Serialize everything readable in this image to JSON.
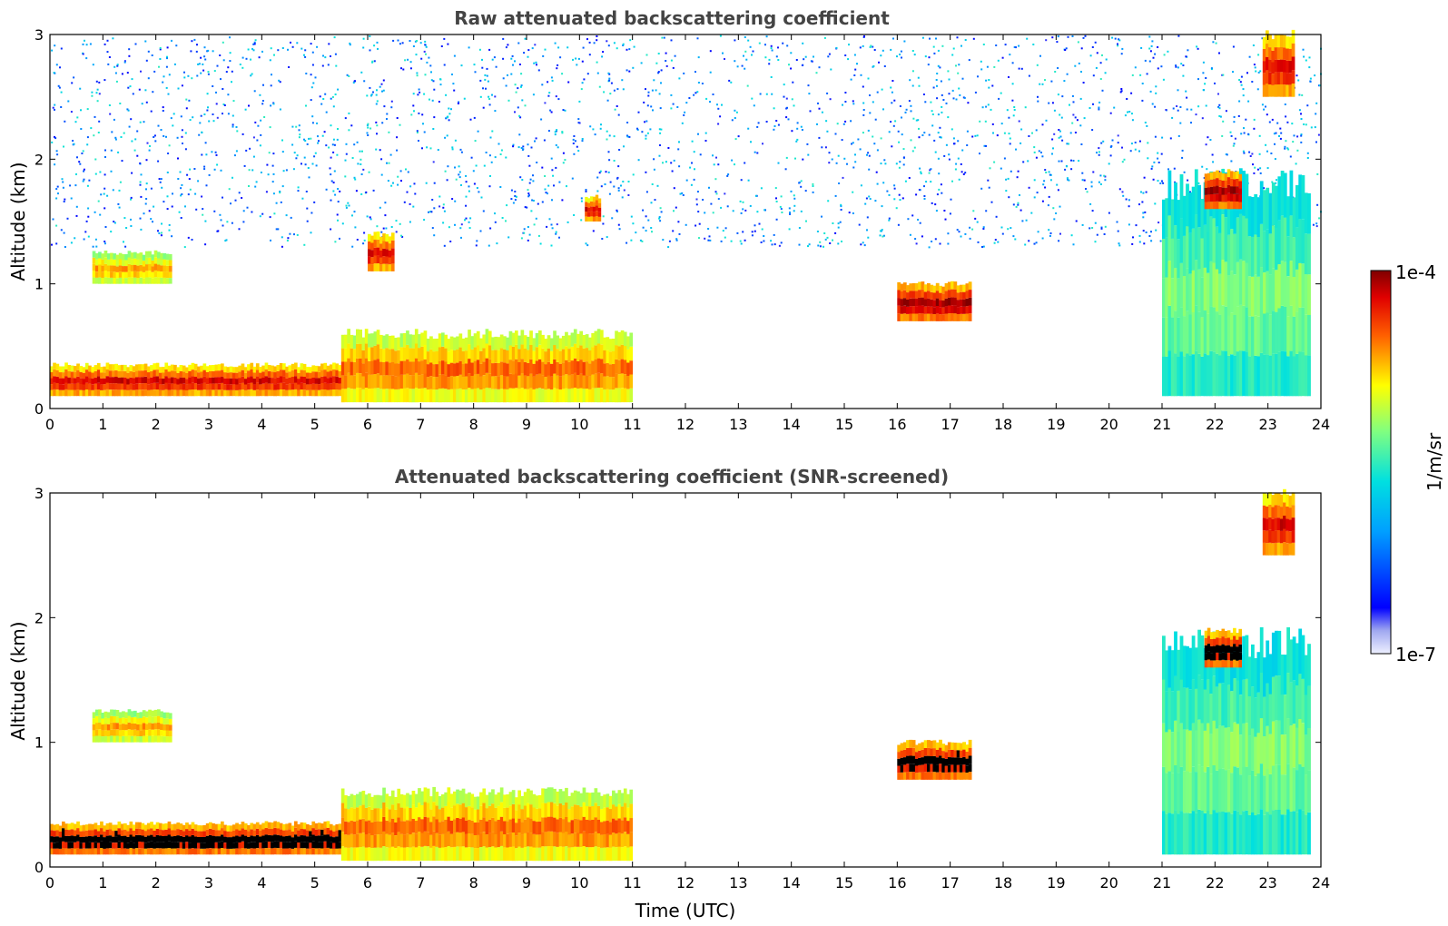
{
  "chart_data": [
    {
      "type": "heatmap",
      "title": "Raw attenuated backscattering coefficient",
      "xlabel": "",
      "ylabel": "Altitude (km)",
      "xlim": [
        0,
        24
      ],
      "ylim": [
        0,
        3
      ],
      "xticks": [
        "0",
        "1",
        "2",
        "3",
        "4",
        "5",
        "6",
        "7",
        "8",
        "9",
        "10",
        "11",
        "12",
        "13",
        "14",
        "15",
        "16",
        "17",
        "18",
        "19",
        "20",
        "21",
        "22",
        "23",
        "24"
      ],
      "yticks": [
        "0",
        "1",
        "2",
        "3"
      ],
      "colorbar": {
        "label": "1/m/sr",
        "min_label": "1e-7",
        "max_label": "1e-4",
        "scale": "log",
        "colormap": "jet"
      },
      "features": [
        {
          "feature": "boundary layer aerosol (high)",
          "x": [
            0,
            5.5
          ],
          "y": [
            0.1,
            0.35
          ],
          "level": 0.95
        },
        {
          "feature": "elevated aerosol layer",
          "x": [
            0.8,
            2.3
          ],
          "y": [
            1.0,
            1.25
          ],
          "level": 0.8
        },
        {
          "feature": "residual layer",
          "x": [
            5.5,
            11
          ],
          "y": [
            0.05,
            0.6
          ],
          "level": 0.85
        },
        {
          "feature": "cloud",
          "x": [
            6.0,
            6.5
          ],
          "y": [
            1.1,
            1.4
          ],
          "level": 0.95
        },
        {
          "feature": "cloud",
          "x": [
            10.1,
            10.4
          ],
          "y": [
            1.5,
            1.7
          ],
          "level": 0.95
        },
        {
          "feature": "cloud",
          "x": [
            16.0,
            17.4
          ],
          "y": [
            0.7,
            1.0
          ],
          "level": 1.0
        },
        {
          "feature": "convective plumes",
          "x": [
            21,
            23.8
          ],
          "y": [
            0.1,
            1.8
          ],
          "level": 0.6
        },
        {
          "feature": "cloud",
          "x": [
            21.8,
            22.5
          ],
          "y": [
            1.6,
            1.9
          ],
          "level": 1.0
        },
        {
          "feature": "cloud",
          "x": [
            22.9,
            23.5
          ],
          "y": [
            2.5,
            3.0
          ],
          "level": 0.95
        },
        {
          "feature": "background noise",
          "x": [
            0,
            24
          ],
          "y": [
            1.3,
            3.0
          ],
          "level": 0.25
        }
      ]
    },
    {
      "type": "heatmap",
      "title": "Attenuated backscattering coefficient (SNR-screened)",
      "xlabel": "Time (UTC)",
      "ylabel": "Altitude (km)",
      "xlim": [
        0,
        24
      ],
      "ylim": [
        0,
        3
      ],
      "xticks": [
        "0",
        "1",
        "2",
        "3",
        "4",
        "5",
        "6",
        "7",
        "8",
        "9",
        "10",
        "11",
        "12",
        "13",
        "14",
        "15",
        "16",
        "17",
        "18",
        "19",
        "20",
        "21",
        "22",
        "23",
        "24"
      ],
      "yticks": [
        "0",
        "1",
        "2",
        "3"
      ],
      "colorbar": {
        "label": "1/m/sr",
        "min_label": "1e-7",
        "max_label": "1e-4",
        "scale": "log",
        "colormap": "jet"
      },
      "features": [
        {
          "feature": "boundary layer aerosol (saturated)",
          "x": [
            0,
            5.5
          ],
          "y": [
            0.1,
            0.35
          ],
          "level": 1.0
        },
        {
          "feature": "elevated aerosol layer",
          "x": [
            0.8,
            2.3
          ],
          "y": [
            1.0,
            1.25
          ],
          "level": 0.8
        },
        {
          "feature": "residual layer",
          "x": [
            5.5,
            11
          ],
          "y": [
            0.05,
            0.6
          ],
          "level": 0.85
        },
        {
          "feature": "cloud",
          "x": [
            16.0,
            17.4
          ],
          "y": [
            0.7,
            1.0
          ],
          "level": 1.0
        },
        {
          "feature": "convective plumes",
          "x": [
            21,
            23.8
          ],
          "y": [
            0.1,
            1.8
          ],
          "level": 0.6
        },
        {
          "feature": "cloud",
          "x": [
            21.8,
            22.5
          ],
          "y": [
            1.6,
            1.9
          ],
          "level": 1.0
        },
        {
          "feature": "cloud",
          "x": [
            22.9,
            23.5
          ],
          "y": [
            2.5,
            3.0
          ],
          "level": 0.95
        }
      ]
    }
  ],
  "colors": {
    "title": "#444444",
    "colormap": "jet",
    "saturated": "#000000"
  }
}
